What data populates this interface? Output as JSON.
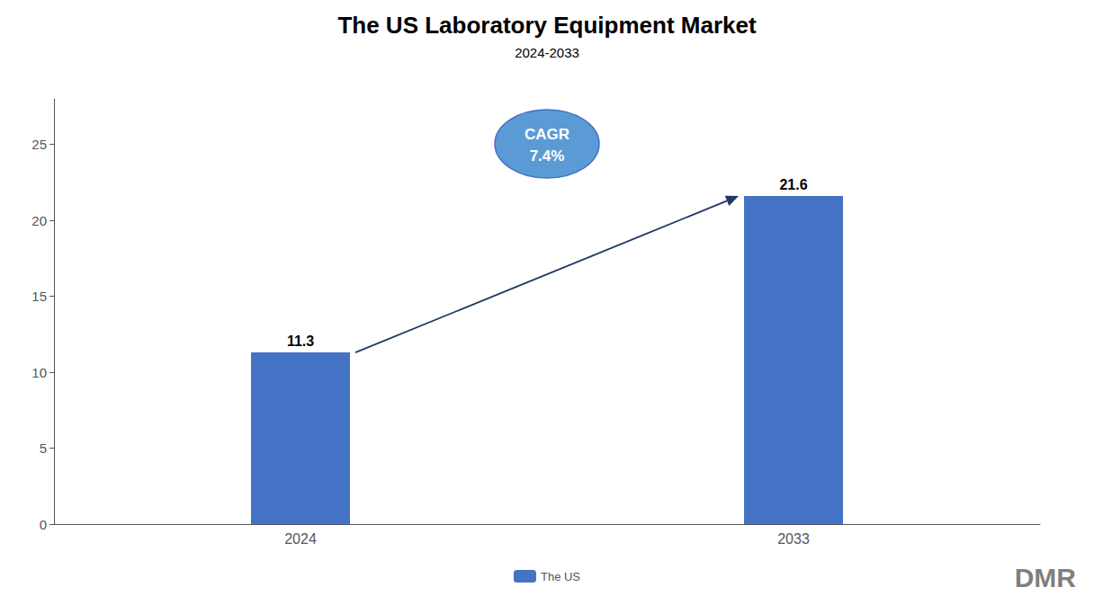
{
  "chart_data": {
    "type": "bar",
    "title": "The US Laboratory Equipment Market",
    "subtitle": "2024-2033",
    "categories": [
      "2024",
      "2033"
    ],
    "series": [
      {
        "name": "The US",
        "color": "#4472C4",
        "values": [
          11.3,
          21.6
        ]
      }
    ],
    "ylim": [
      0,
      28
    ],
    "yticks": [
      0,
      5,
      10,
      15,
      20,
      25
    ],
    "grid": false,
    "legend": "bottom",
    "data_labels": true,
    "annotations": [
      "CAGR",
      "7.4%",
      "DMR"
    ]
  }
}
